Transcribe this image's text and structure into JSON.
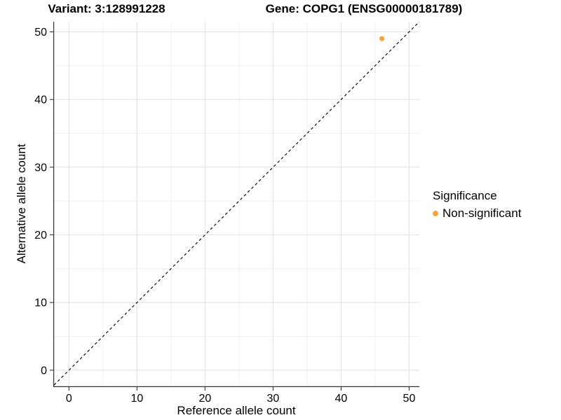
{
  "figure": {
    "title_left": "Variant: 3:128991228",
    "title_right": "Gene: COPG1 (ENSG00000181789)"
  },
  "axes": {
    "x": {
      "label": "Reference allele count"
    },
    "y": {
      "label": "Alternative allele count"
    }
  },
  "legend": {
    "title": "Significance",
    "items": [
      {
        "label": "Non-significant",
        "color": "#F9A23C"
      }
    ]
  },
  "chart_data": {
    "type": "scatter",
    "title_left": "Variant: 3:128991228",
    "title_right": "Gene: COPG1 (ENSG00000181789)",
    "xlabel": "Reference allele count",
    "ylabel": "Alternative allele count",
    "xlim": [
      -2.3,
      51.5
    ],
    "ylim": [
      -2.5,
      51.5
    ],
    "x_ticks": [
      0,
      10,
      20,
      30,
      40,
      50
    ],
    "y_ticks": [
      0,
      10,
      20,
      30,
      40,
      50
    ],
    "x_minor_ticks": [
      5,
      15,
      25,
      35,
      45
    ],
    "y_minor_ticks": [
      5,
      15,
      25,
      35,
      45
    ],
    "grid": true,
    "legend_position": "right",
    "series": [
      {
        "name": "Non-significant",
        "color": "#F9A23C",
        "points": [
          {
            "x": 46,
            "y": 49
          }
        ]
      }
    ],
    "reference_line": {
      "kind": "identity",
      "equation": "y = x",
      "style": "dashed",
      "color": "#000000"
    }
  },
  "colors": {
    "background": "#ffffff",
    "grid_major": "#e3e3e3",
    "grid_minor": "#f0f0f0",
    "axis_line": "#333333",
    "tick": "#333333",
    "text": "#000000",
    "point": "#F9A23C"
  }
}
